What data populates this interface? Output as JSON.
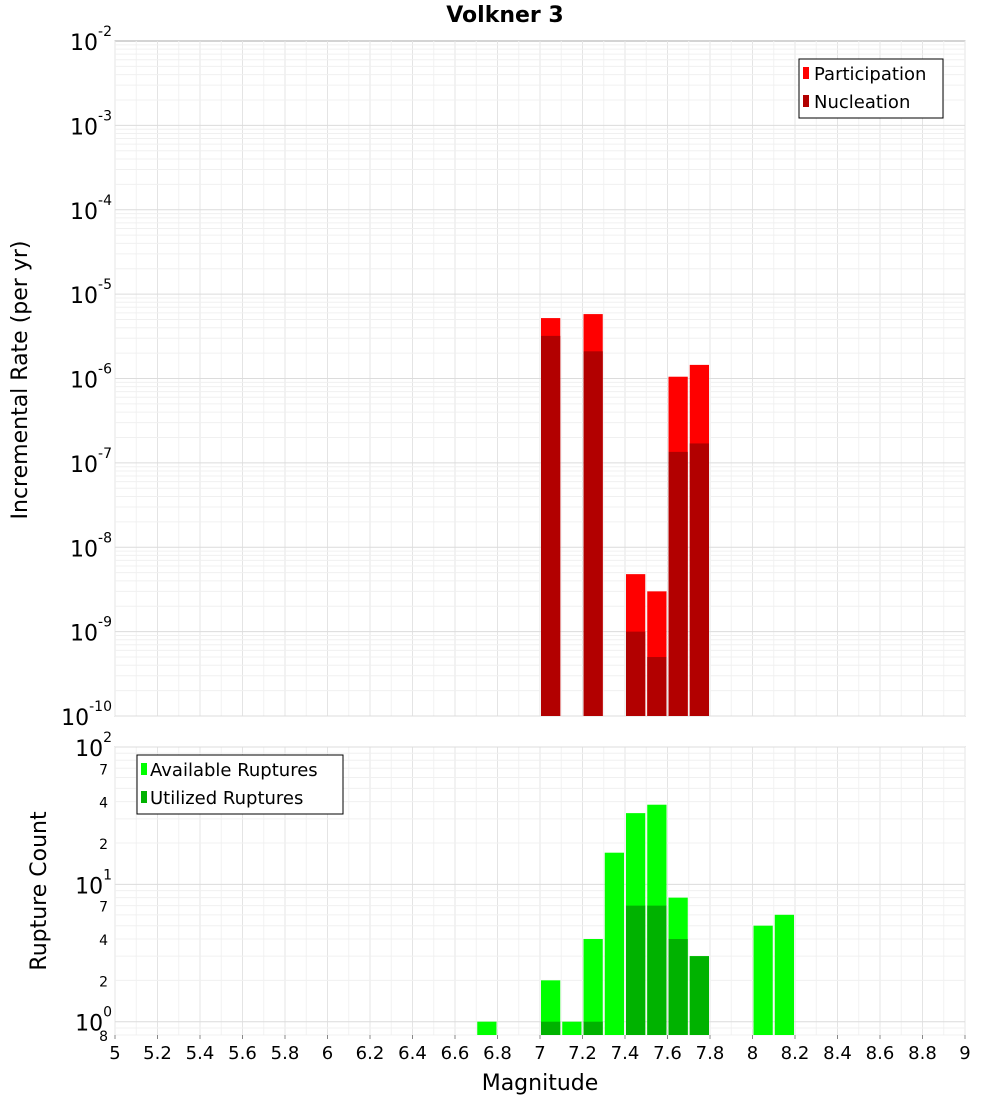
{
  "chart_data": [
    {
      "type": "bar",
      "title": "Volkner 3",
      "xlabel": "",
      "ylabel": "Incremental Rate (per yr)",
      "xlim": [
        5,
        9
      ],
      "ylim": [
        1e-10,
        0.01
      ],
      "yscale": "log",
      "grid": true,
      "legend_position": "top-right",
      "bin_width": 0.1,
      "y_ticks": [
        {
          "base": "10",
          "exp": "-10"
        },
        {
          "base": "10",
          "exp": "-9"
        },
        {
          "base": "10",
          "exp": "-8"
        },
        {
          "base": "10",
          "exp": "-7"
        },
        {
          "base": "10",
          "exp": "-6"
        },
        {
          "base": "10",
          "exp": "-5"
        },
        {
          "base": "10",
          "exp": "-4"
        },
        {
          "base": "10",
          "exp": "-3"
        },
        {
          "base": "10",
          "exp": "-2"
        }
      ],
      "series": [
        {
          "name": "Participation",
          "color": "#ff0000",
          "points": [
            {
              "x": 7.05,
              "y": 5.2e-06
            },
            {
              "x": 7.25,
              "y": 5.8e-06
            },
            {
              "x": 7.45,
              "y": 4.8e-09
            },
            {
              "x": 7.55,
              "y": 3e-09
            },
            {
              "x": 7.65,
              "y": 1.05e-06
            },
            {
              "x": 7.75,
              "y": 1.45e-06
            }
          ]
        },
        {
          "name": "Nucleation",
          "color": "#b20000",
          "points": [
            {
              "x": 7.05,
              "y": 3.2e-06
            },
            {
              "x": 7.25,
              "y": 2.1e-06
            },
            {
              "x": 7.45,
              "y": 1e-09
            },
            {
              "x": 7.55,
              "y": 5e-10
            },
            {
              "x": 7.65,
              "y": 1.35e-07
            },
            {
              "x": 7.75,
              "y": 1.7e-07
            }
          ]
        }
      ]
    },
    {
      "type": "bar",
      "title": "",
      "xlabel": "Magnitude",
      "ylabel": "Rupture Count",
      "xlim": [
        5,
        9
      ],
      "ylim": [
        0.8,
        100
      ],
      "yscale": "log",
      "grid": true,
      "legend_position": "top-left",
      "bin_width": 0.1,
      "x_ticks": [
        "5",
        "5.2",
        "5.4",
        "5.6",
        "5.8",
        "6",
        "6.2",
        "6.4",
        "6.6",
        "6.8",
        "7",
        "7.2",
        "7.4",
        "7.6",
        "7.8",
        "8",
        "8.2",
        "8.4",
        "8.6",
        "8.8",
        "9"
      ],
      "y_major_ticks": [
        {
          "value": 1,
          "base": "10",
          "exp": "0"
        },
        {
          "value": 10,
          "base": "10",
          "exp": "1"
        },
        {
          "value": 100,
          "base": "10",
          "exp": "2"
        }
      ],
      "y_minor_ticks": [
        {
          "value": 0.8,
          "label": "8"
        },
        {
          "value": 2,
          "label": "2"
        },
        {
          "value": 4,
          "label": "4"
        },
        {
          "value": 7,
          "label": "7"
        },
        {
          "value": 20,
          "label": "2"
        },
        {
          "value": 40,
          "label": "4"
        },
        {
          "value": 70,
          "label": "7"
        }
      ],
      "series": [
        {
          "name": "Available Ruptures",
          "color": "#00ff00",
          "points": [
            {
              "x": 6.75,
              "y": 1
            },
            {
              "x": 7.05,
              "y": 2
            },
            {
              "x": 7.15,
              "y": 1
            },
            {
              "x": 7.25,
              "y": 4
            },
            {
              "x": 7.35,
              "y": 17
            },
            {
              "x": 7.45,
              "y": 33
            },
            {
              "x": 7.55,
              "y": 38
            },
            {
              "x": 7.65,
              "y": 8
            },
            {
              "x": 7.75,
              "y": 3
            },
            {
              "x": 8.05,
              "y": 5
            },
            {
              "x": 8.15,
              "y": 6
            }
          ]
        },
        {
          "name": "Utilized Ruptures",
          "color": "#00b200",
          "points": [
            {
              "x": 7.05,
              "y": 1
            },
            {
              "x": 7.25,
              "y": 1
            },
            {
              "x": 7.45,
              "y": 7
            },
            {
              "x": 7.55,
              "y": 7
            },
            {
              "x": 7.65,
              "y": 4
            },
            {
              "x": 7.75,
              "y": 3
            }
          ]
        }
      ]
    }
  ]
}
